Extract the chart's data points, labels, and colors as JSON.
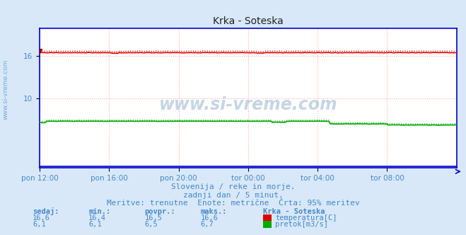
{
  "title": "Krka - Soteska",
  "bg_color": "#d8e8f8",
  "plot_bg_color": "#ffffff",
  "grid_color": "#ffaaaa",
  "x_labels": [
    "pon 12:00",
    "pon 16:00",
    "pon 20:00",
    "tor 00:00",
    "tor 04:00",
    "tor 08:00"
  ],
  "x_ticks_norm": [
    0.0,
    0.1667,
    0.3333,
    0.5,
    0.6667,
    0.8333
  ],
  "ylim": [
    0,
    20
  ],
  "temp_value": 16.5,
  "temp_min": 16.4,
  "temp_max": 16.6,
  "flow_value": 6.5,
  "flow_min": 6.1,
  "flow_max": 6.7,
  "temp_color": "#dd0000",
  "flow_color": "#00aa00",
  "border_color": "#0000cc",
  "text_color": "#4488cc",
  "watermark_color": "#4477aa",
  "subtitle1": "Slovenija / reke in morje.",
  "subtitle2": "zadnji dan / 5 minut.",
  "subtitle3": "Meritve: trenutne  Enote: metrične  Črta: 95% meritev",
  "legend_title": "Krka - Soteska",
  "legend_temp_label": "temperatura[C]",
  "legend_flow_label": "pretok[m3/s]",
  "table_headers": [
    "sedaj:",
    "min.:",
    "povpr.:",
    "maks.:"
  ],
  "table_temp": [
    "16,6",
    "16,4",
    "16,5",
    "16,6"
  ],
  "table_flow": [
    "6,1",
    "6,1",
    "6,5",
    "6,7"
  ],
  "n_points": 288
}
